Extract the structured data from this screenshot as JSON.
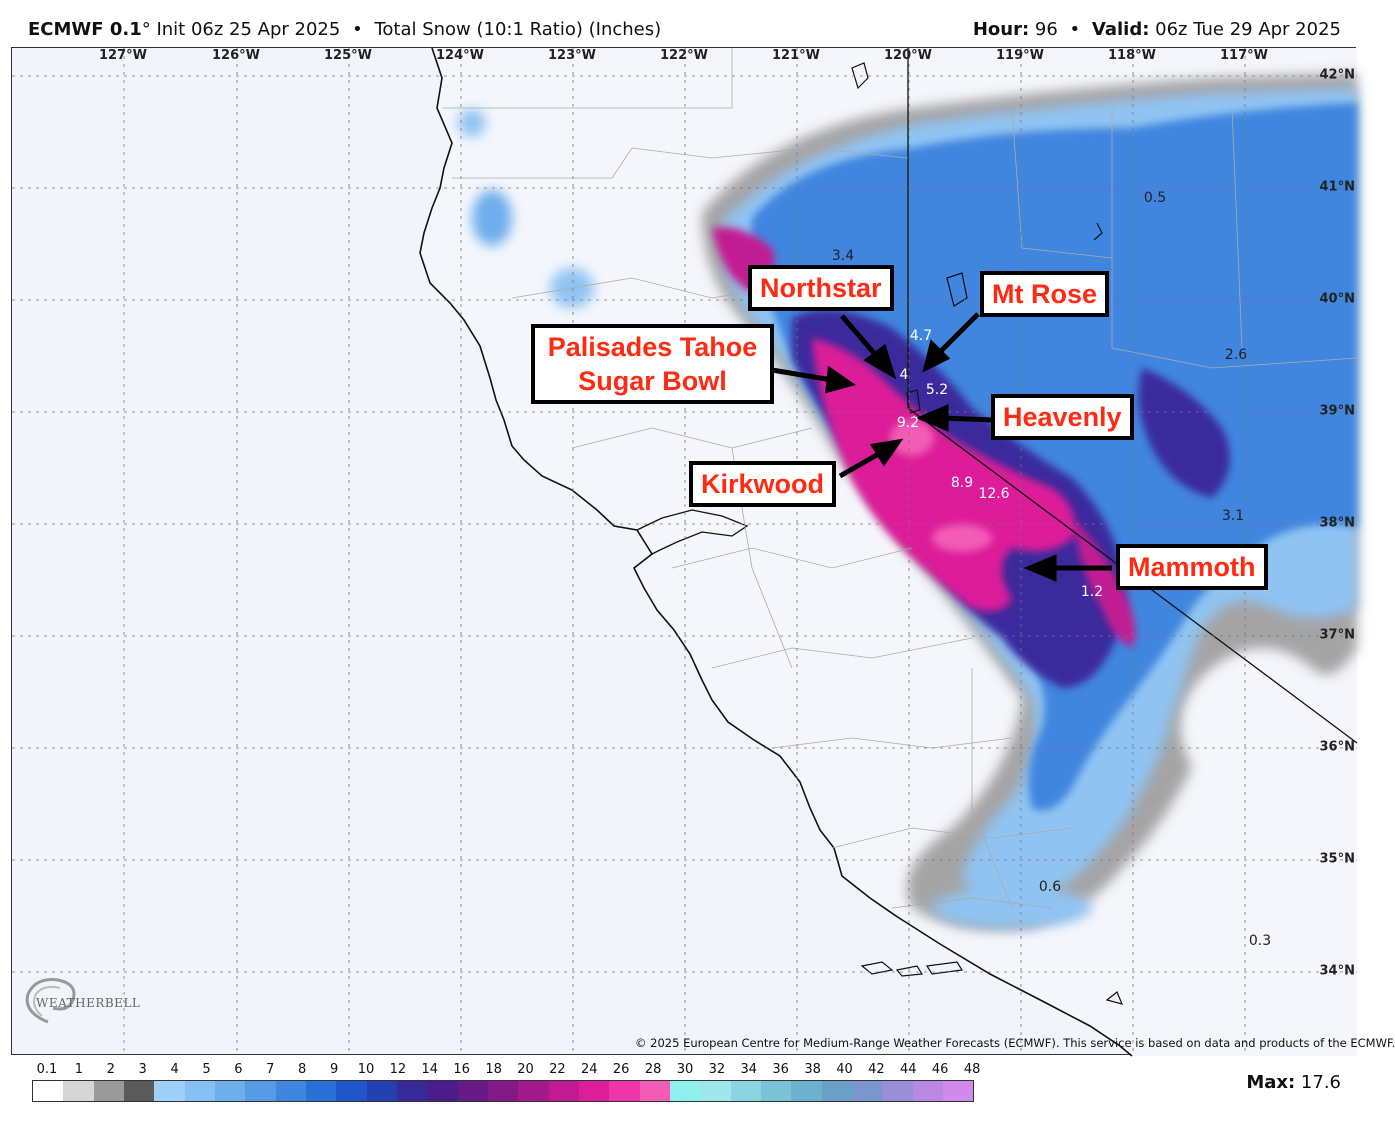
{
  "header": {
    "model": "ECMWF 0.1",
    "degree_symbol": "°",
    "init": "Init 06z 25 Apr 2025",
    "separator": "•",
    "product": "Total Snow (10:1 Ratio) (Inches)",
    "hour_label": "Hour:",
    "hour_value": "96",
    "valid_label": "Valid:",
    "valid_value": "06z Tue 29 Apr 2025"
  },
  "map": {
    "region": "Northern and Central California / Nevada",
    "longitude_labels": [
      "127°W",
      "126°W",
      "125°W",
      "124°W",
      "123°W",
      "122°W",
      "121°W",
      "120°W",
      "119°W",
      "118°W",
      "117°W"
    ],
    "latitude_labels": [
      "42°N",
      "41°N",
      "40°N",
      "39°N",
      "38°N",
      "37°N",
      "36°N",
      "35°N",
      "34°N"
    ],
    "point_values": [
      {
        "text": "3.4",
        "color": "dark"
      },
      {
        "text": "4.7",
        "color": "white"
      },
      {
        "text": "4",
        "color": "white"
      },
      {
        "text": "5.2",
        "color": "white"
      },
      {
        "text": "9.2",
        "color": "white"
      },
      {
        "text": "8.9",
        "color": "white"
      },
      {
        "text": "12.6",
        "color": "white"
      },
      {
        "text": "0.5",
        "color": "dark"
      },
      {
        "text": "2.6",
        "color": "dark"
      },
      {
        "text": "3.1",
        "color": "dark"
      },
      {
        "text": "1.2",
        "color": "white"
      },
      {
        "text": "0.6",
        "color": "dark"
      },
      {
        "text": "0.3",
        "color": "dark"
      }
    ],
    "callouts": [
      {
        "label": "Northstar"
      },
      {
        "label": "Mt Rose"
      },
      {
        "label_line1": "Palisades Tahoe",
        "label_line2": "Sugar Bowl"
      },
      {
        "label": "Heavenly"
      },
      {
        "label": "Kirkwood"
      },
      {
        "label": "Mammoth"
      }
    ],
    "copyright": "© 2025 European Centre for Medium-Range Weather Forecasts (ECMWF). This service is based on data and products of the ECMWF.",
    "logo_text": "WEATHERBELL",
    "logo_icon": "weatherbell-swirl-logo"
  },
  "legend": {
    "ticks": [
      "0.1",
      "1",
      "2",
      "3",
      "4",
      "5",
      "6",
      "7",
      "8",
      "9",
      "10",
      "12",
      "14",
      "16",
      "18",
      "20",
      "22",
      "24",
      "26",
      "28",
      "30",
      "32",
      "34",
      "36",
      "38",
      "40",
      "42",
      "44",
      "46",
      "48"
    ],
    "colors": [
      "#ffffff",
      "#d6d6d6",
      "#9a9a9a",
      "#5a5a5a",
      "#9ed0f7",
      "#86c0f2",
      "#6eaeec",
      "#579be6",
      "#3f86df",
      "#2a6fd6",
      "#1f56c9",
      "#2440b0",
      "#352a98",
      "#4a1e8a",
      "#661a85",
      "#841a86",
      "#a31a8a",
      "#c21a92",
      "#dc1e98",
      "#ee36a6",
      "#f25cb6",
      "#8ff0ee",
      "#9ee6ea",
      "#8cd4e0",
      "#7cc2d6",
      "#6cb2cc",
      "#6aa0c6",
      "#7a96cc",
      "#9a8ed6",
      "#ba88e2",
      "#d08aec"
    ],
    "max_label": "Max:",
    "max_value": "17.6"
  }
}
